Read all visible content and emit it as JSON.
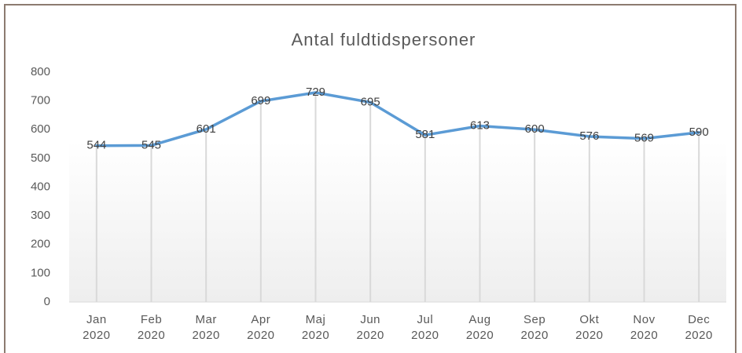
{
  "chart_data": {
    "type": "line",
    "title": "Antal fuldtidspersoner",
    "categories": [
      "Jan 2020",
      "Feb 2020",
      "Mar 2020",
      "Apr 2020",
      "Maj 2020",
      "Jun 2020",
      "Jul 2020",
      "Aug 2020",
      "Sep 2020",
      "Okt 2020",
      "Nov 2020",
      "Dec 2020"
    ],
    "series": [
      {
        "name": "Antal fuldtidspersoner",
        "color": "#5b9bd5",
        "values": [
          544,
          545,
          601,
          699,
          729,
          695,
          581,
          613,
          600,
          576,
          569,
          590
        ]
      }
    ],
    "ylim": [
      0,
      800
    ],
    "yticks": [
      0,
      100,
      200,
      300,
      400,
      500,
      600,
      700,
      800
    ],
    "drop_lines": true
  }
}
